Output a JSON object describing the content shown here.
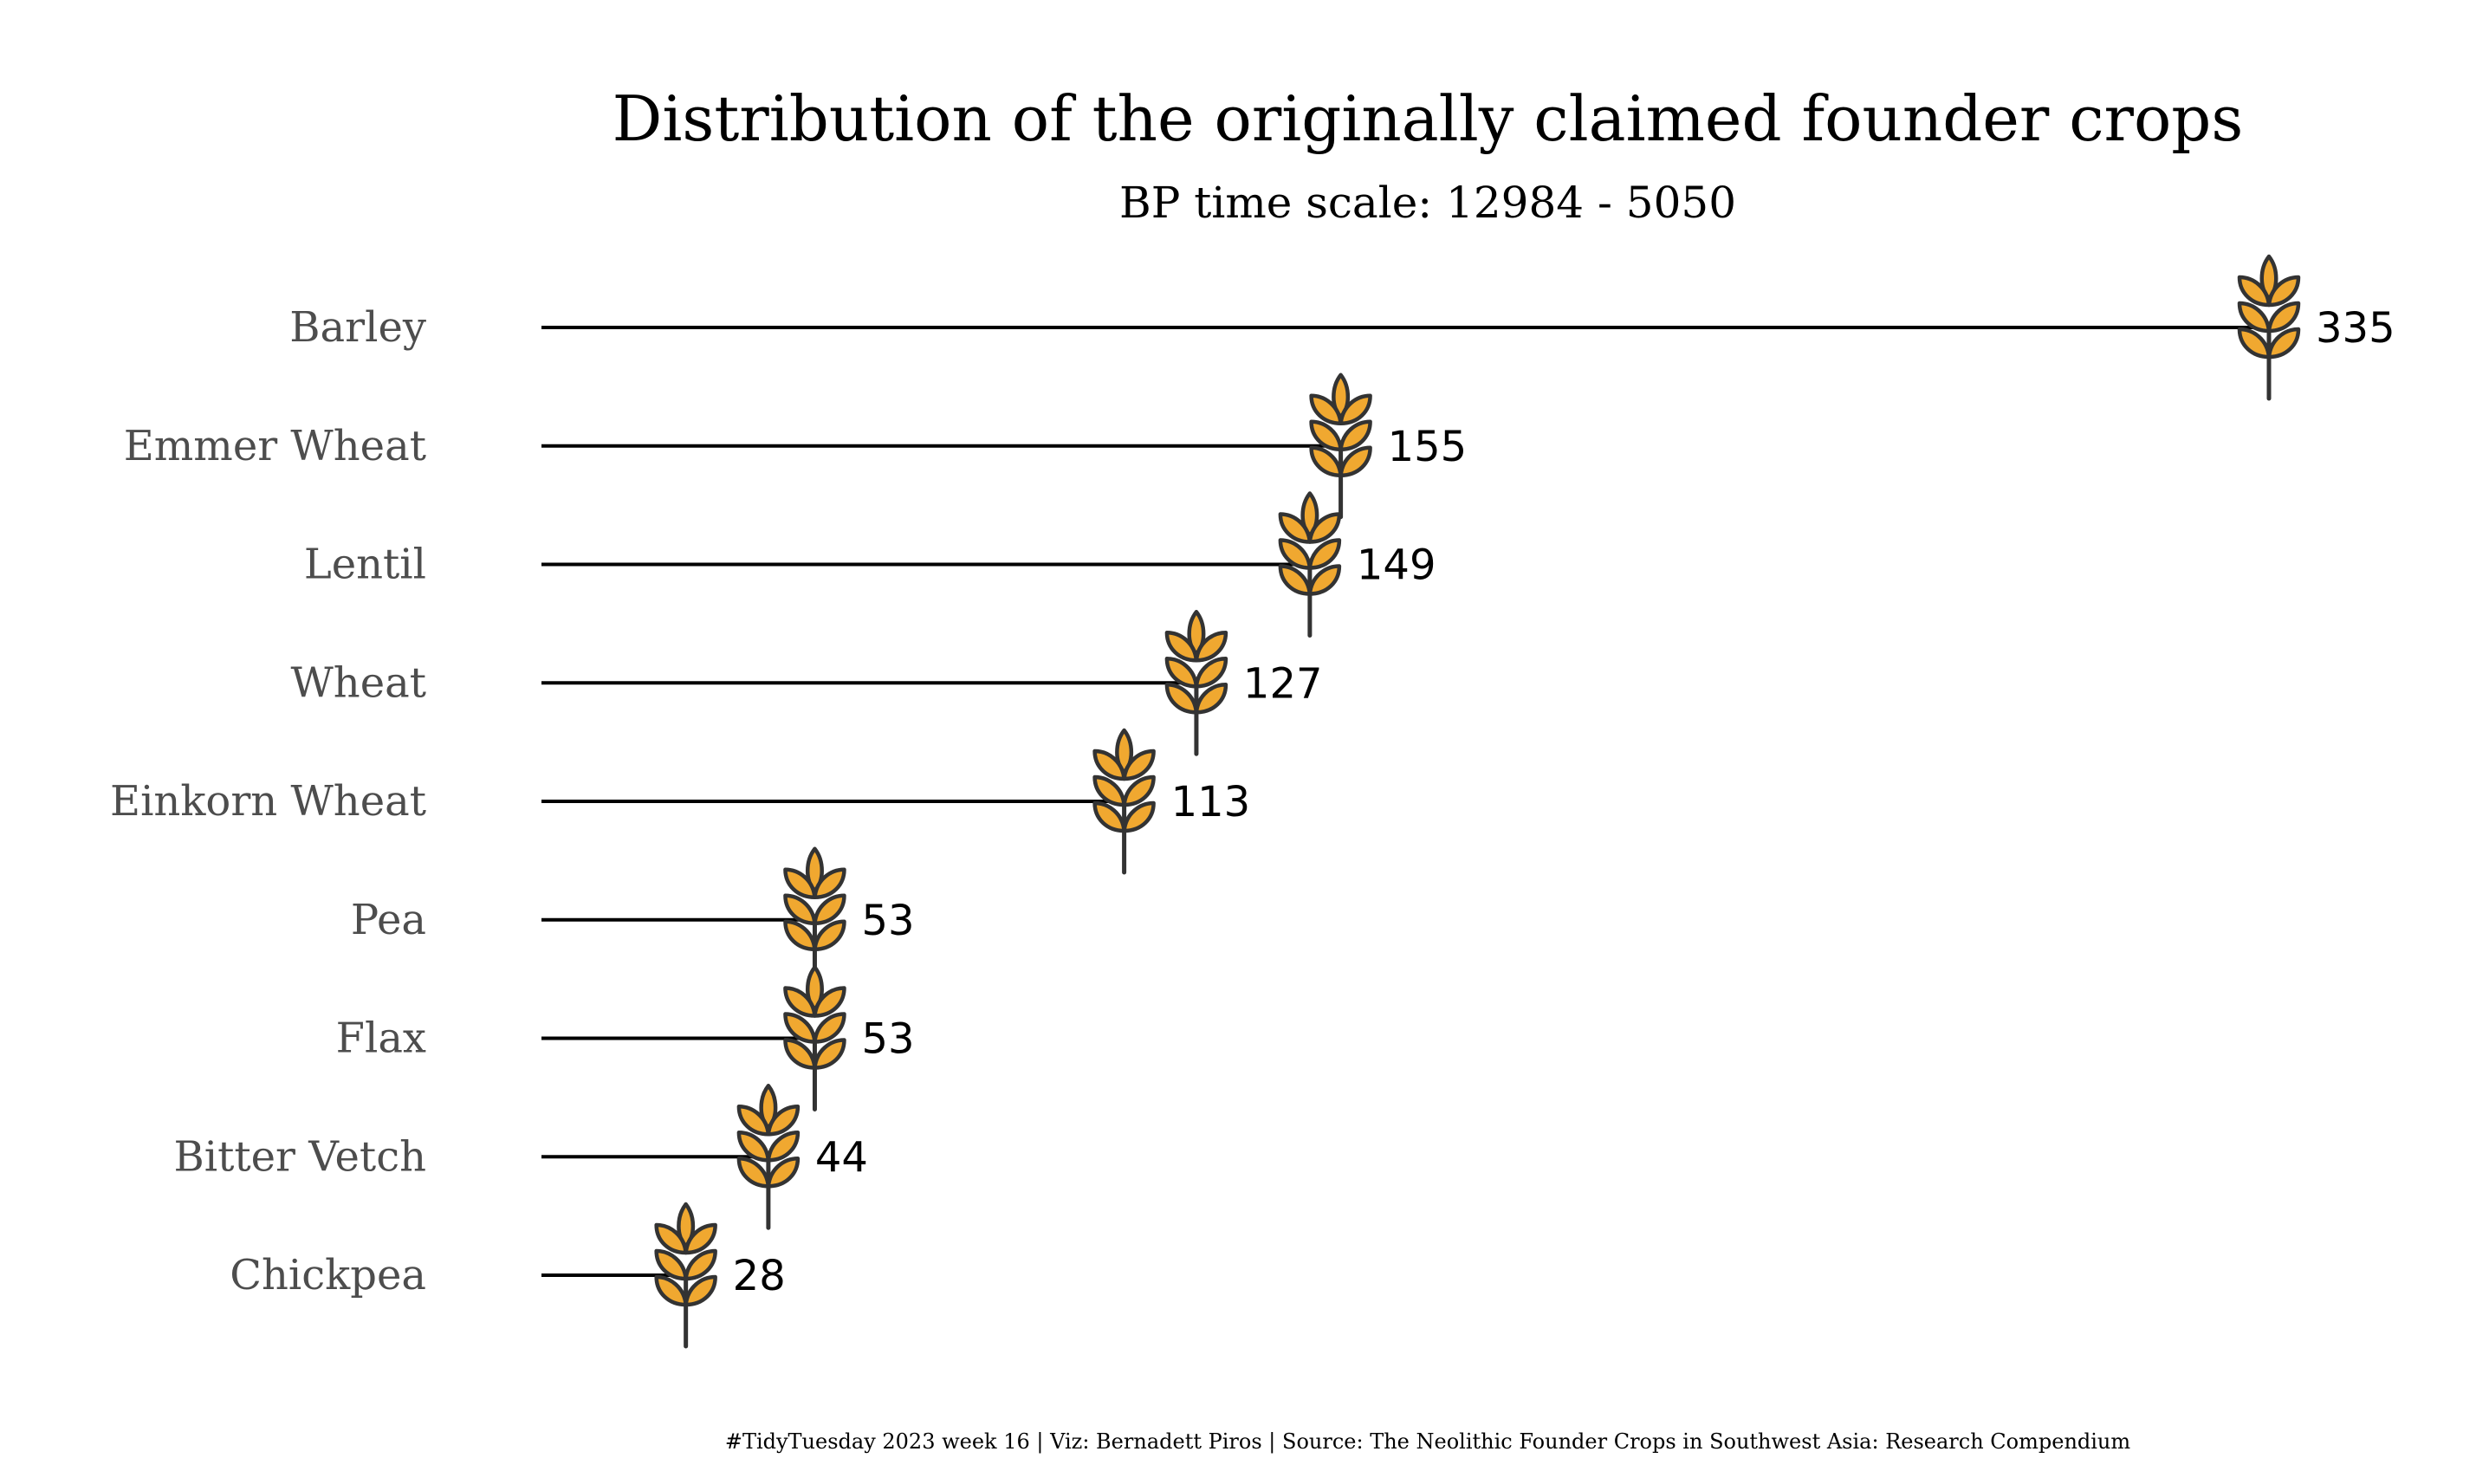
{
  "chart_data": {
    "type": "lollipop",
    "title": "Distribution of the originally claimed founder crops",
    "subtitle": "BP time scale: 12984 - 5050",
    "categories": [
      "Barley",
      "Emmer Wheat",
      "Lentil",
      "Wheat",
      "Einkorn Wheat",
      "Pea",
      "Flax",
      "Bitter Vetch",
      "Chickpea"
    ],
    "values": [
      335,
      155,
      149,
      127,
      113,
      53,
      53,
      44,
      28
    ],
    "marker": "wheat-icon",
    "marker_color": "#f0a830",
    "marker_outline": "#333333",
    "line_color": "#000000",
    "label_color": "#4d4d4d",
    "grid": false,
    "legend": "none",
    "xlim": [
      0,
      335
    ]
  },
  "caption": "#TidyTuesday 2023 week 16 | Viz: Bernadett Piros | Source: The Neolithic Founder Crops in Southwest Asia: Research Compendium"
}
